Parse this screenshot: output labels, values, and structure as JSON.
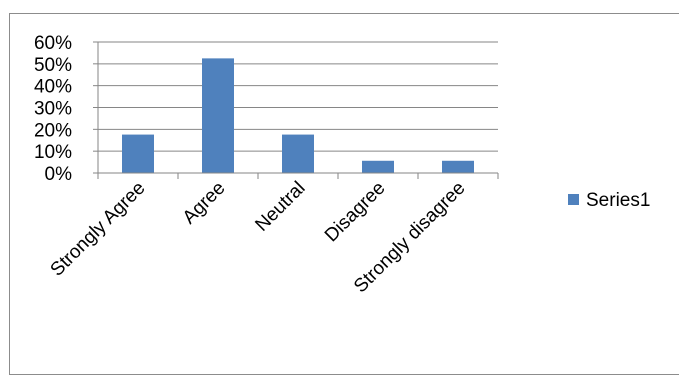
{
  "chart_data": {
    "type": "bar",
    "categories": [
      "Strongly Agree",
      "Agree",
      "Neutral",
      "Disagree",
      "Strongly disagree"
    ],
    "series": [
      {
        "name": "Series1",
        "values": [
          0.176,
          0.525,
          0.176,
          0.056,
          0.056
        ],
        "color": "#4f81bd"
      }
    ],
    "yticks": [
      "0%",
      "10%",
      "20%",
      "30%",
      "40%",
      "50%",
      "60%"
    ],
    "ylim": [
      0,
      0.6
    ],
    "grid": true,
    "legend": "right",
    "gridline_color": "#868686",
    "axis_color": "#868686"
  }
}
